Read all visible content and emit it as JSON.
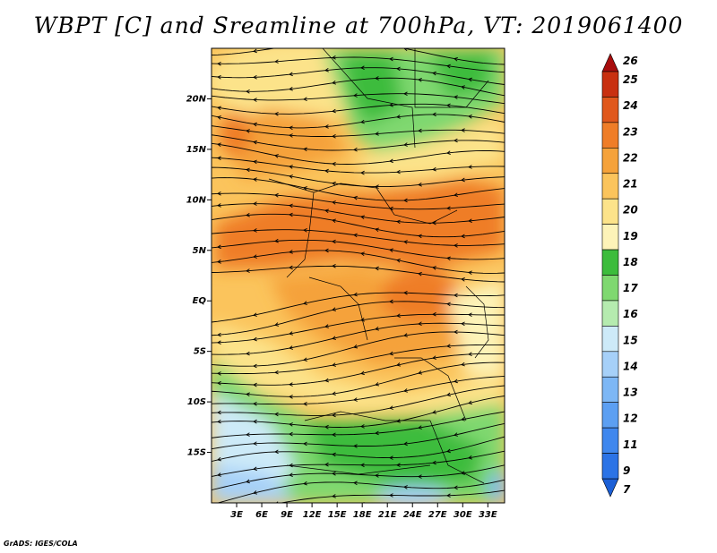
{
  "title": "WBPT [C] and Sreamline at 700hPa, VT: 2019061400",
  "credit": "GrADS: IGES/COLA",
  "map": {
    "lon_range": [
      0,
      35
    ],
    "lat_range": [
      -20,
      25
    ],
    "lat_ticks": [
      {
        "value": 20,
        "label": "20N"
      },
      {
        "value": 15,
        "label": "15N"
      },
      {
        "value": 10,
        "label": "10N"
      },
      {
        "value": 5,
        "label": "5N"
      },
      {
        "value": 0,
        "label": "EQ"
      },
      {
        "value": -5,
        "label": "5S"
      },
      {
        "value": -10,
        "label": "10S"
      },
      {
        "value": -15,
        "label": "15S"
      }
    ],
    "lon_ticks": [
      {
        "value": 3,
        "label": "3E"
      },
      {
        "value": 6,
        "label": "6E"
      },
      {
        "value": 9,
        "label": "9E"
      },
      {
        "value": 12,
        "label": "12E"
      },
      {
        "value": 15,
        "label": "15E"
      },
      {
        "value": 18,
        "label": "18E"
      },
      {
        "value": 21,
        "label": "21E"
      },
      {
        "value": 24,
        "label": "24E"
      },
      {
        "value": 27,
        "label": "27E"
      },
      {
        "value": 30,
        "label": "30E"
      },
      {
        "value": 33,
        "label": "33E"
      }
    ]
  },
  "colorbar": {
    "levels": [
      "7",
      "9",
      "11",
      "12",
      "13",
      "14",
      "15",
      "16",
      "17",
      "18",
      "19",
      "20",
      "21",
      "22",
      "23",
      "24",
      "25",
      "26"
    ],
    "colors": [
      "#1b5fd6",
      "#2b73e6",
      "#3f87ee",
      "#5c9ff2",
      "#7db7f5",
      "#a6d0f8",
      "#cdeaf8",
      "#b5ebaf",
      "#7fd870",
      "#3cbc3c",
      "#fdf3b8",
      "#fce38a",
      "#fbc45c",
      "#f5a23a",
      "#ef7d27",
      "#e0581c",
      "#c83010",
      "#a80d0d"
    ]
  }
}
